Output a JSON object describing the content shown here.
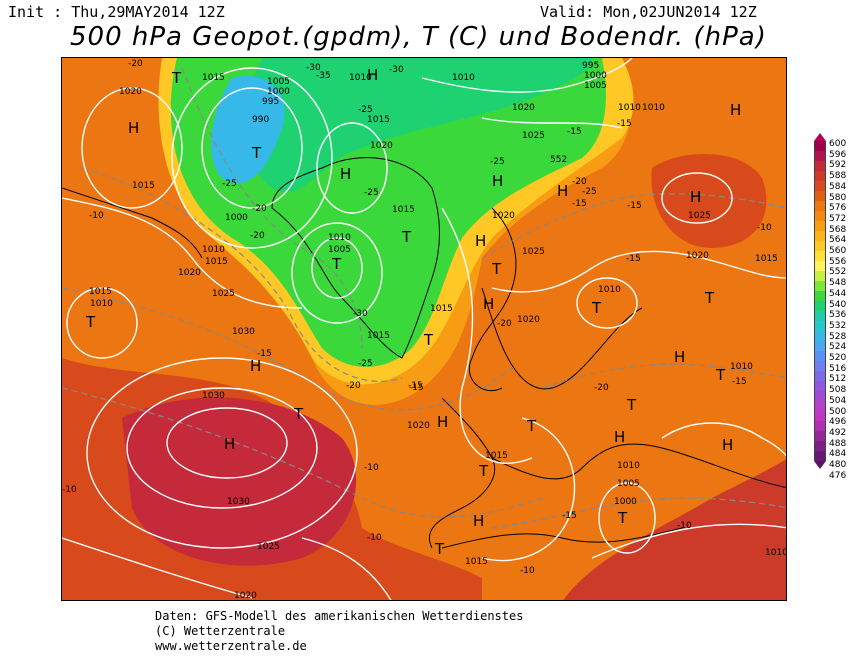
{
  "header": {
    "init": "Init : Thu,29MAY2014 12Z",
    "valid": "Valid: Mon,02JUN2014 12Z",
    "title": "500 hPa Geopot.(gpdm), T (C) und Bodendr. (hPa)"
  },
  "colorbar": {
    "labels": [
      "600",
      "596",
      "592",
      "588",
      "584",
      "580",
      "576",
      "572",
      "568",
      "564",
      "560",
      "556",
      "552",
      "548",
      "544",
      "540",
      "536",
      "532",
      "528",
      "524",
      "520",
      "516",
      "512",
      "508",
      "504",
      "500",
      "496",
      "492",
      "488",
      "484",
      "480",
      "476"
    ],
    "colors": [
      "#a0004a",
      "#b3124e",
      "#c42a3a",
      "#cc3a2a",
      "#d84a1c",
      "#e25e14",
      "#ec7612",
      "#f28a10",
      "#f89c14",
      "#fbb41a",
      "#ffc824",
      "#ffe038",
      "#fff460",
      "#c8f040",
      "#7ee83a",
      "#3ad83a",
      "#1ed272",
      "#20cca8",
      "#26c8cc",
      "#36b8e8",
      "#4aa8f0",
      "#5a94f2",
      "#6c80f0",
      "#7e6ae8",
      "#9058e0",
      "#a24ad6",
      "#b440cc",
      "#c236c2",
      "#b030b0",
      "#96289a",
      "#7c2084",
      "#641a70"
    ]
  },
  "map": {
    "pressure_labels": [
      "1015",
      "1005",
      "1000",
      "995",
      "1010",
      "995",
      "1000",
      "1005",
      "1020",
      "1010",
      "1015",
      "990",
      "1015",
      "1020",
      "1025",
      "1000",
      "1010",
      "1005",
      "1010",
      "1015",
      "1020",
      "1025",
      "1015",
      "1020",
      "1025",
      "1030",
      "1015",
      "1030",
      "1020",
      "1015",
      "1030",
      "1025",
      "1020",
      "1010",
      "1005",
      "1000",
      "1010",
      "1015",
      "1010",
      "1015",
      "1020",
      "1010",
      "1025",
      "1020",
      "1010",
      "1015",
      "1015",
      "1010",
      "1010",
      "1020"
    ],
    "temp_labels": [
      "-30",
      "-20",
      "-35",
      "-30",
      "-25",
      "-25",
      "-20",
      "-25",
      "-30",
      "-20",
      "-25",
      "-15",
      "-20",
      "-25",
      "-15",
      "-10",
      "-15",
      "-15",
      "-20",
      "-15",
      "-20",
      "-15",
      "-10",
      "-15",
      "-10",
      "-20",
      "-15",
      "-15",
      "-15",
      "-10",
      "-10",
      "-10",
      "-10",
      "-25"
    ],
    "height_labels": [
      "552"
    ],
    "H": "H",
    "T": "T"
  },
  "footer": {
    "line1": "Daten: GFS-Modell des amerikanischen Wetterdienstes",
    "line2": "(C) Wetterzentrale",
    "line3": "www.wetterzentrale.de"
  }
}
